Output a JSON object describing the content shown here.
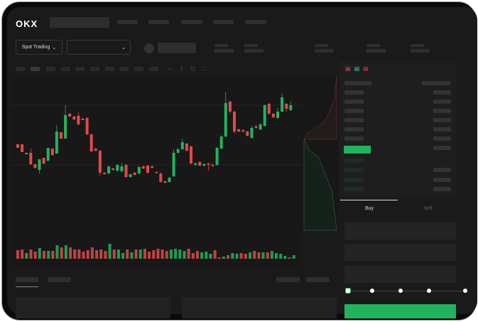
{
  "header": {
    "logo": "OKX"
  },
  "toolbar": {
    "market_select": "Spot Trading",
    "pair_select": ""
  },
  "trade": {
    "buy_label": "Buy",
    "sell_label": "Sell",
    "leverage_steps": 5,
    "leverage_selected": 0
  },
  "colors": {
    "up": "#22b35e",
    "down": "#e04a4a",
    "background": "#1a1a1a",
    "accent": "#22b35e"
  },
  "icons": [
    "chevron-down-icon",
    "orderbook-both-icon",
    "orderbook-bids-icon",
    "orderbook-asks-icon",
    "indicator-icon",
    "draw-icon",
    "settings-icon",
    "fullscreen-icon"
  ],
  "chart_data": {
    "type": "candlestick",
    "title": "",
    "candles": [
      {
        "o": 97,
        "c": 92,
        "h": 97,
        "l": 92
      },
      {
        "o": 97,
        "c": 86,
        "h": 97,
        "l": 86
      },
      {
        "o": 83,
        "c": 85,
        "h": 85,
        "l": 83
      },
      {
        "o": 85,
        "c": 69,
        "h": 91,
        "l": 68
      },
      {
        "o": 69,
        "c": 64,
        "h": 69,
        "l": 63
      },
      {
        "o": 61,
        "c": 76,
        "h": 76,
        "l": 56
      },
      {
        "o": 78,
        "c": 70,
        "h": 78,
        "l": 69
      },
      {
        "o": 74,
        "c": 92,
        "h": 92,
        "l": 73
      },
      {
        "o": 91,
        "c": 82,
        "h": 91,
        "l": 81
      },
      {
        "o": 84,
        "c": 115,
        "h": 124,
        "l": 84
      },
      {
        "o": 114,
        "c": 105,
        "h": 114,
        "l": 104
      },
      {
        "o": 105,
        "c": 138,
        "h": 152,
        "l": 105
      },
      {
        "o": 140,
        "c": 136,
        "h": 141,
        "l": 136
      },
      {
        "o": 136,
        "c": 132,
        "h": 137,
        "l": 131
      },
      {
        "o": 137,
        "c": 125,
        "h": 142,
        "l": 124
      },
      {
        "o": 133,
        "c": 131,
        "h": 134,
        "l": 131
      },
      {
        "o": 134,
        "c": 111,
        "h": 135,
        "l": 110
      },
      {
        "o": 111,
        "c": 87,
        "h": 112,
        "l": 86
      },
      {
        "o": 91,
        "c": 88,
        "h": 92,
        "l": 87
      },
      {
        "o": 88,
        "c": 57,
        "h": 89,
        "l": 53
      },
      {
        "o": 57,
        "c": 55,
        "h": 58,
        "l": 54
      },
      {
        "o": 56,
        "c": 66,
        "h": 66,
        "l": 55
      },
      {
        "o": 63,
        "c": 61,
        "h": 64,
        "l": 60
      },
      {
        "o": 60,
        "c": 68,
        "h": 69,
        "l": 58
      },
      {
        "o": 59,
        "c": 66,
        "h": 71,
        "l": 58
      },
      {
        "o": 68,
        "c": 51,
        "h": 69,
        "l": 50
      },
      {
        "o": 51,
        "c": 55,
        "h": 55,
        "l": 50
      },
      {
        "o": 57,
        "c": 54,
        "h": 58,
        "l": 53
      },
      {
        "o": 56,
        "c": 65,
        "h": 66,
        "l": 55
      },
      {
        "o": 66,
        "c": 63,
        "h": 67,
        "l": 62
      },
      {
        "o": 67,
        "c": 57,
        "h": 68,
        "l": 56
      },
      {
        "o": 66,
        "c": 64,
        "h": 67,
        "l": 63
      },
      {
        "o": 58,
        "c": 57,
        "h": 59,
        "l": 56
      },
      {
        "o": 56,
        "c": 44,
        "h": 57,
        "l": 43
      },
      {
        "o": 45,
        "c": 43,
        "h": 46,
        "l": 42
      },
      {
        "o": 44,
        "c": 50,
        "h": 51,
        "l": 43
      },
      {
        "o": 52,
        "c": 85,
        "h": 90,
        "l": 51
      },
      {
        "o": 85,
        "c": 90,
        "h": 92,
        "l": 84
      },
      {
        "o": 90,
        "c": 100,
        "h": 105,
        "l": 90
      },
      {
        "o": 98,
        "c": 88,
        "h": 99,
        "l": 87
      },
      {
        "o": 94,
        "c": 70,
        "h": 95,
        "l": 69
      },
      {
        "o": 68,
        "c": 70,
        "h": 72,
        "l": 67
      },
      {
        "o": 72,
        "c": 67,
        "h": 73,
        "l": 66
      },
      {
        "o": 67,
        "c": 69,
        "h": 70,
        "l": 66
      },
      {
        "o": 70,
        "c": 69,
        "h": 71,
        "l": 60
      },
      {
        "o": 68,
        "c": 67,
        "h": 70,
        "l": 66
      },
      {
        "o": 68,
        "c": 92,
        "h": 93,
        "l": 67
      },
      {
        "o": 91,
        "c": 108,
        "h": 110,
        "l": 90
      },
      {
        "o": 108,
        "c": 155,
        "h": 171,
        "l": 107
      },
      {
        "o": 157,
        "c": 143,
        "h": 158,
        "l": 140
      },
      {
        "o": 143,
        "c": 115,
        "h": 144,
        "l": 112
      },
      {
        "o": 118,
        "c": 115,
        "h": 119,
        "l": 114
      },
      {
        "o": 117,
        "c": 115,
        "h": 118,
        "l": 114
      },
      {
        "o": 115,
        "c": 109,
        "h": 116,
        "l": 108
      },
      {
        "o": 106,
        "c": 120,
        "h": 123,
        "l": 105
      },
      {
        "o": 122,
        "c": 120,
        "h": 125,
        "l": 119
      },
      {
        "o": 118,
        "c": 125,
        "h": 127,
        "l": 117
      },
      {
        "o": 123,
        "c": 152,
        "h": 153,
        "l": 122
      },
      {
        "o": 154,
        "c": 140,
        "h": 155,
        "l": 139
      },
      {
        "o": 140,
        "c": 135,
        "h": 141,
        "l": 134
      },
      {
        "o": 134,
        "c": 143,
        "h": 148,
        "l": 133
      },
      {
        "o": 143,
        "c": 163,
        "h": 168,
        "l": 142
      },
      {
        "o": 154,
        "c": 147,
        "h": 155,
        "l": 143
      },
      {
        "o": 145,
        "c": 152,
        "h": 158,
        "l": 144
      }
    ],
    "volume": [
      {
        "v": 12,
        "up": false
      },
      {
        "v": 13,
        "up": false
      },
      {
        "v": 8,
        "up": true
      },
      {
        "v": 13,
        "up": false
      },
      {
        "v": 10,
        "up": false
      },
      {
        "v": 15,
        "up": true
      },
      {
        "v": 11,
        "up": false
      },
      {
        "v": 11,
        "up": true
      },
      {
        "v": 11,
        "up": false
      },
      {
        "v": 19,
        "up": true
      },
      {
        "v": 16,
        "up": false
      },
      {
        "v": 19,
        "up": true
      },
      {
        "v": 16,
        "up": false
      },
      {
        "v": 13,
        "up": false
      },
      {
        "v": 13,
        "up": false
      },
      {
        "v": 10,
        "up": false
      },
      {
        "v": 12,
        "up": false
      },
      {
        "v": 16,
        "up": false
      },
      {
        "v": 12,
        "up": false
      },
      {
        "v": 13,
        "up": false
      },
      {
        "v": 11,
        "up": false
      },
      {
        "v": 21,
        "up": true
      },
      {
        "v": 13,
        "up": false
      },
      {
        "v": 13,
        "up": true
      },
      {
        "v": 8,
        "up": true
      },
      {
        "v": 13,
        "up": false
      },
      {
        "v": 9,
        "up": true
      },
      {
        "v": 13,
        "up": false
      },
      {
        "v": 13,
        "up": true
      },
      {
        "v": 14,
        "up": false
      },
      {
        "v": 10,
        "up": false
      },
      {
        "v": 12,
        "up": false
      },
      {
        "v": 14,
        "up": false
      },
      {
        "v": 13,
        "up": false
      },
      {
        "v": 11,
        "up": false
      },
      {
        "v": 13,
        "up": true
      },
      {
        "v": 14,
        "up": true
      },
      {
        "v": 13,
        "up": true
      },
      {
        "v": 11,
        "up": true
      },
      {
        "v": 14,
        "up": false
      },
      {
        "v": 8,
        "up": false
      },
      {
        "v": 11,
        "up": false
      },
      {
        "v": 9,
        "up": true
      },
      {
        "v": 10,
        "up": true
      },
      {
        "v": 7,
        "up": true
      },
      {
        "v": 12,
        "up": false
      },
      {
        "v": 2,
        "up": false
      },
      {
        "v": 3,
        "up": true
      },
      {
        "v": 5,
        "up": false
      },
      {
        "v": 8,
        "up": true
      },
      {
        "v": 7,
        "up": true
      },
      {
        "v": 8,
        "up": false
      },
      {
        "v": 7,
        "up": false
      },
      {
        "v": 9,
        "up": true
      },
      {
        "v": 11,
        "up": false
      },
      {
        "v": 9,
        "up": false
      },
      {
        "v": 9,
        "up": true
      },
      {
        "v": 9,
        "up": false
      },
      {
        "v": 11,
        "up": true
      },
      {
        "v": 8,
        "up": true
      },
      {
        "v": 7,
        "up": true
      },
      {
        "v": 4,
        "up": true
      },
      {
        "v": 2,
        "up": false
      },
      {
        "v": 5,
        "up": true
      }
    ]
  }
}
